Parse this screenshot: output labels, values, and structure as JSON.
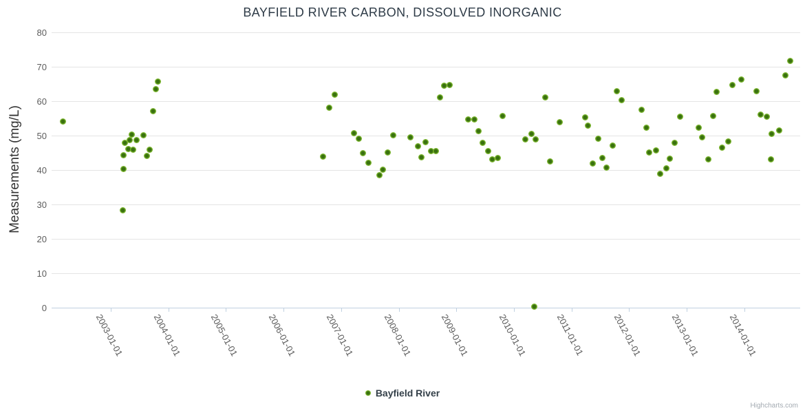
{
  "title": "BAYFIELD RIVER CARBON, DISSOLVED INORGANIC",
  "y_axis": {
    "title": "Measurements (mg/L)",
    "ticks": [
      0,
      10,
      20,
      30,
      40,
      50,
      60,
      70,
      80
    ]
  },
  "x_axis": {
    "labels": [
      "2003-01-01",
      "2004-01-01",
      "2005-01-01",
      "2006-01-01",
      "2007-01-01",
      "2008-01-01",
      "2009-01-01",
      "2010-01-01",
      "2011-01-01",
      "2012-01-01",
      "2013-01-01",
      "2014-01-01"
    ]
  },
  "legend": {
    "label": "Bayfield River"
  },
  "credits": "Highcharts.com",
  "colors": {
    "marker_outer": "#7ab42d",
    "marker_inner": "#3a7110",
    "grid": "#e4e4e4",
    "axis_line": "#c0d0e0",
    "tick_label": "#5c5c5c",
    "title_text": "#2e3b47"
  },
  "chart_data": {
    "type": "scatter",
    "title": "BAYFIELD RIVER CARBON, DISSOLVED INORGANIC",
    "xlabel": "",
    "ylabel": "Measurements (mg/L)",
    "ylim": [
      0,
      80
    ],
    "xlim_decimal_years": [
      2002.0,
      2015.0
    ],
    "grid": "horizontal-only",
    "legend_position": "bottom-center",
    "x_unit": "decimal year (date axis, yearly ticks on Jan 1)",
    "series": [
      {
        "name": "Bayfield River",
        "color": "#7ab42d",
        "points": [
          [
            2002.17,
            54.0
          ],
          [
            2003.21,
            28.2
          ],
          [
            2003.22,
            40.2
          ],
          [
            2003.22,
            44.3
          ],
          [
            2003.24,
            47.8
          ],
          [
            2003.3,
            46.0
          ],
          [
            2003.33,
            48.7
          ],
          [
            2003.37,
            50.3
          ],
          [
            2003.39,
            45.9
          ],
          [
            2003.45,
            48.6
          ],
          [
            2003.57,
            50.0
          ],
          [
            2003.63,
            44.1
          ],
          [
            2003.67,
            45.9
          ],
          [
            2003.74,
            57.1
          ],
          [
            2003.78,
            63.5
          ],
          [
            2003.82,
            65.6
          ],
          [
            2006.69,
            43.9
          ],
          [
            2006.79,
            58.0
          ],
          [
            2006.89,
            61.8
          ],
          [
            2007.22,
            50.6
          ],
          [
            2007.31,
            49.0
          ],
          [
            2007.38,
            44.9
          ],
          [
            2007.48,
            42.1
          ],
          [
            2007.66,
            38.5
          ],
          [
            2007.73,
            40.0
          ],
          [
            2007.81,
            45.0
          ],
          [
            2007.91,
            50.0
          ],
          [
            2008.2,
            49.4
          ],
          [
            2008.33,
            46.8
          ],
          [
            2008.39,
            43.6
          ],
          [
            2008.46,
            48.1
          ],
          [
            2008.56,
            45.5
          ],
          [
            2008.64,
            45.5
          ],
          [
            2008.72,
            61.0
          ],
          [
            2008.79,
            64.5
          ],
          [
            2008.89,
            64.6
          ],
          [
            2009.21,
            54.6
          ],
          [
            2009.31,
            54.7
          ],
          [
            2009.38,
            51.3
          ],
          [
            2009.46,
            47.9
          ],
          [
            2009.55,
            45.4
          ],
          [
            2009.63,
            43.0
          ],
          [
            2009.72,
            43.5
          ],
          [
            2009.8,
            55.7
          ],
          [
            2010.2,
            48.9
          ],
          [
            2010.3,
            50.5
          ],
          [
            2010.35,
            0.2
          ],
          [
            2010.38,
            48.8
          ],
          [
            2010.55,
            61.0
          ],
          [
            2010.63,
            42.5
          ],
          [
            2010.79,
            53.8
          ],
          [
            2011.24,
            55.3
          ],
          [
            2011.28,
            52.9
          ],
          [
            2011.37,
            41.9
          ],
          [
            2011.47,
            49.1
          ],
          [
            2011.54,
            43.4
          ],
          [
            2011.61,
            40.6
          ],
          [
            2011.72,
            47.0
          ],
          [
            2011.79,
            62.8
          ],
          [
            2011.87,
            60.3
          ],
          [
            2012.22,
            57.5
          ],
          [
            2012.3,
            52.3
          ],
          [
            2012.35,
            45.0
          ],
          [
            2012.47,
            45.7
          ],
          [
            2012.54,
            38.8
          ],
          [
            2012.65,
            40.5
          ],
          [
            2012.71,
            43.3
          ],
          [
            2012.79,
            47.8
          ],
          [
            2012.89,
            55.5
          ],
          [
            2013.21,
            52.3
          ],
          [
            2013.27,
            49.5
          ],
          [
            2013.38,
            43.1
          ],
          [
            2013.46,
            55.7
          ],
          [
            2013.52,
            62.6
          ],
          [
            2013.62,
            46.5
          ],
          [
            2013.72,
            48.2
          ],
          [
            2013.79,
            64.7
          ],
          [
            2013.95,
            66.3
          ],
          [
            2014.21,
            62.9
          ],
          [
            2014.28,
            56.0
          ],
          [
            2014.39,
            55.4
          ],
          [
            2014.46,
            43.0
          ],
          [
            2014.48,
            50.5
          ],
          [
            2014.61,
            51.5
          ],
          [
            2014.71,
            67.5
          ],
          [
            2014.8,
            71.7
          ]
        ]
      }
    ]
  }
}
